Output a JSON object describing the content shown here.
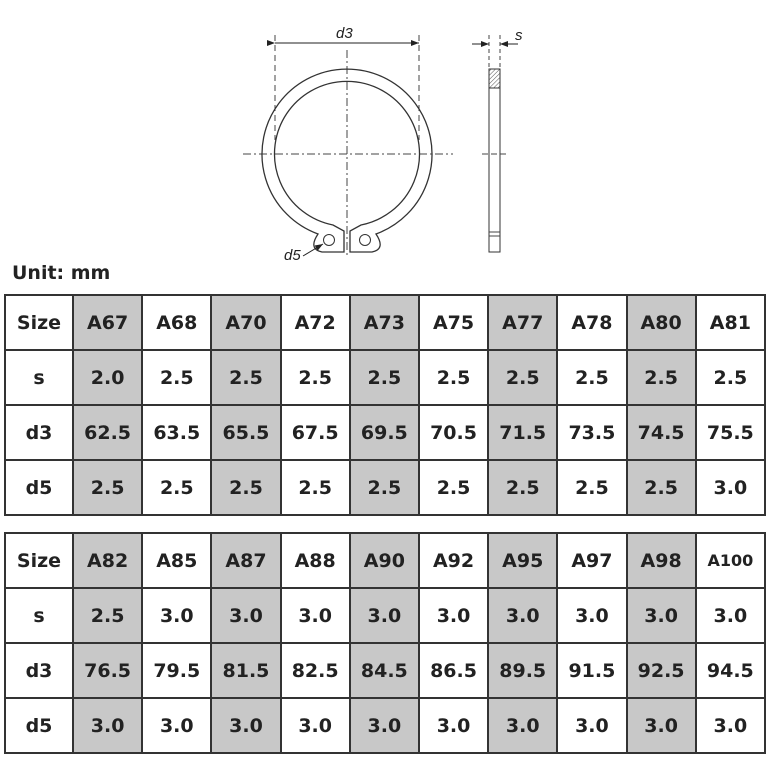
{
  "drawing": {
    "d3_label": "d3",
    "s_label": "s",
    "d5_label": "d5"
  },
  "unit_label": "Unit: mm",
  "shaded_color": "#c8c8c8",
  "tables": [
    {
      "rows": [
        {
          "label": "Size",
          "values": [
            "A67",
            "A68",
            "A70",
            "A72",
            "A73",
            "A75",
            "A77",
            "A78",
            "A80",
            "A81"
          ]
        },
        {
          "label": "s",
          "values": [
            "2.0",
            "2.5",
            "2.5",
            "2.5",
            "2.5",
            "2.5",
            "2.5",
            "2.5",
            "2.5",
            "2.5"
          ]
        },
        {
          "label": "d3",
          "values": [
            "62.5",
            "63.5",
            "65.5",
            "67.5",
            "69.5",
            "70.5",
            "71.5",
            "73.5",
            "74.5",
            "75.5"
          ]
        },
        {
          "label": "d5",
          "values": [
            "2.5",
            "2.5",
            "2.5",
            "2.5",
            "2.5",
            "2.5",
            "2.5",
            "2.5",
            "2.5",
            "3.0"
          ]
        }
      ]
    },
    {
      "rows": [
        {
          "label": "Size",
          "values": [
            "A82",
            "A85",
            "A87",
            "A88",
            "A90",
            "A92",
            "A95",
            "A97",
            "A98",
            "A100"
          ]
        },
        {
          "label": "s",
          "values": [
            "2.5",
            "3.0",
            "3.0",
            "3.0",
            "3.0",
            "3.0",
            "3.0",
            "3.0",
            "3.0",
            "3.0"
          ]
        },
        {
          "label": "d3",
          "values": [
            "76.5",
            "79.5",
            "81.5",
            "82.5",
            "84.5",
            "86.5",
            "89.5",
            "91.5",
            "92.5",
            "94.5"
          ]
        },
        {
          "label": "d5",
          "values": [
            "3.0",
            "3.0",
            "3.0",
            "3.0",
            "3.0",
            "3.0",
            "3.0",
            "3.0",
            "3.0",
            "3.0"
          ]
        }
      ]
    }
  ]
}
